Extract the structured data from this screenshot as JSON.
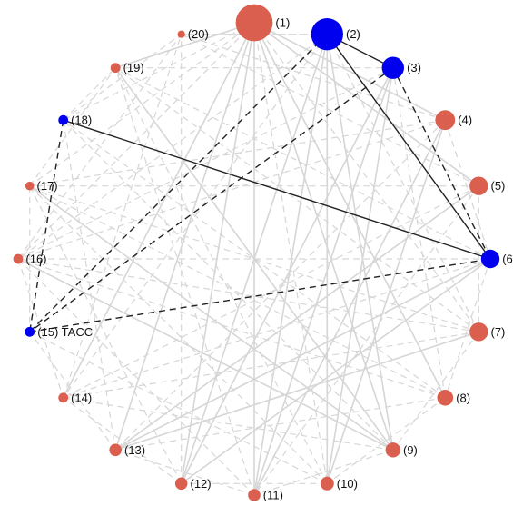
{
  "colors": {
    "default_node": "#db5f4f",
    "highlight_node": "#0000ee",
    "background_edge": "#d6d6d6",
    "highlight_edge": "#222222"
  },
  "nodes": [
    {
      "id": "1",
      "label": "(1)",
      "group": "default",
      "relative_size": 3.0
    },
    {
      "id": "2",
      "label": "(2)",
      "group": "highlight",
      "relative_size": 2.6
    },
    {
      "id": "3",
      "label": "(3)",
      "group": "highlight",
      "relative_size": 1.8
    },
    {
      "id": "4",
      "label": "(4)",
      "group": "default",
      "relative_size": 1.6
    },
    {
      "id": "5",
      "label": "(5)",
      "group": "default",
      "relative_size": 1.5
    },
    {
      "id": "6",
      "label": "(6",
      "group": "highlight",
      "relative_size": 1.5
    },
    {
      "id": "7",
      "label": "(7)",
      "group": "default",
      "relative_size": 1.5
    },
    {
      "id": "8",
      "label": "(8)",
      "group": "default",
      "relative_size": 1.3
    },
    {
      "id": "9",
      "label": "(9)",
      "group": "default",
      "relative_size": 1.2
    },
    {
      "id": "10",
      "label": "(10)",
      "group": "default",
      "relative_size": 1.1
    },
    {
      "id": "11",
      "label": "(11)",
      "group": "default",
      "relative_size": 1.0
    },
    {
      "id": "12",
      "label": "(12)",
      "group": "default",
      "relative_size": 1.0
    },
    {
      "id": "13",
      "label": "(13)",
      "group": "default",
      "relative_size": 1.0
    },
    {
      "id": "14",
      "label": "(14)",
      "group": "default",
      "relative_size": 0.8
    },
    {
      "id": "15",
      "label": "(15) TACC",
      "group": "highlight",
      "relative_size": 0.8
    },
    {
      "id": "16",
      "label": "(16)",
      "group": "default",
      "relative_size": 0.8
    },
    {
      "id": "17",
      "label": "(17)",
      "group": "default",
      "relative_size": 0.7
    },
    {
      "id": "18",
      "label": "(18)",
      "group": "highlight",
      "relative_size": 0.8
    },
    {
      "id": "19",
      "label": "(19)",
      "group": "default",
      "relative_size": 0.8
    },
    {
      "id": "20",
      "label": "(20)",
      "group": "default",
      "relative_size": 0.6
    }
  ],
  "highlight_edges": [
    {
      "from": "2",
      "to": "3",
      "style": "solid"
    },
    {
      "from": "2",
      "to": "6",
      "style": "solid"
    },
    {
      "from": "18",
      "to": "6",
      "style": "solid"
    },
    {
      "from": "3",
      "to": "6",
      "style": "dashed"
    },
    {
      "from": "2",
      "to": "15",
      "style": "dashed"
    },
    {
      "from": "3",
      "to": "15",
      "style": "dashed"
    },
    {
      "from": "18",
      "to": "15",
      "style": "dashed"
    },
    {
      "from": "15",
      "to": "6",
      "style": "dashed"
    }
  ],
  "background_edges": [
    {
      "from": "1",
      "to": "8",
      "style": "solid"
    },
    {
      "from": "1",
      "to": "9",
      "style": "solid"
    },
    {
      "from": "1",
      "to": "12",
      "style": "solid"
    },
    {
      "from": "1",
      "to": "13",
      "style": "solid"
    },
    {
      "from": "1",
      "to": "14",
      "style": "solid"
    },
    {
      "from": "1",
      "to": "11",
      "style": "solid"
    },
    {
      "from": "1",
      "to": "4",
      "style": "solid"
    },
    {
      "from": "1",
      "to": "5",
      "style": "solid"
    },
    {
      "from": "1",
      "to": "19",
      "style": "solid"
    },
    {
      "from": "2",
      "to": "10",
      "style": "solid"
    },
    {
      "from": "2",
      "to": "11",
      "style": "solid"
    },
    {
      "from": "2",
      "to": "12",
      "style": "solid"
    },
    {
      "from": "2",
      "to": "9",
      "style": "solid"
    },
    {
      "from": "3",
      "to": "11",
      "style": "solid"
    },
    {
      "from": "3",
      "to": "12",
      "style": "solid"
    },
    {
      "from": "3",
      "to": "10",
      "style": "solid"
    },
    {
      "from": "4",
      "to": "10",
      "style": "solid"
    },
    {
      "from": "4",
      "to": "11",
      "style": "solid"
    },
    {
      "from": "5",
      "to": "13",
      "style": "solid"
    },
    {
      "from": "6",
      "to": "12",
      "style": "solid"
    },
    {
      "from": "6",
      "to": "13",
      "style": "solid"
    },
    {
      "from": "7",
      "to": "13",
      "style": "solid"
    },
    {
      "from": "9",
      "to": "16",
      "style": "solid"
    },
    {
      "from": "9",
      "to": "19",
      "style": "solid"
    },
    {
      "from": "9",
      "to": "17",
      "style": "solid"
    },
    {
      "from": "1",
      "to": "17",
      "style": "dashed"
    },
    {
      "from": "1",
      "to": "18",
      "style": "dashed"
    },
    {
      "from": "1",
      "to": "16",
      "style": "dashed"
    },
    {
      "from": "1",
      "to": "7",
      "style": "dashed"
    },
    {
      "from": "1",
      "to": "10",
      "style": "dashed"
    },
    {
      "from": "2",
      "to": "20",
      "style": "dashed"
    },
    {
      "from": "2",
      "to": "16",
      "style": "dashed"
    },
    {
      "from": "2",
      "to": "14",
      "style": "dashed"
    },
    {
      "from": "2",
      "to": "7",
      "style": "dashed"
    },
    {
      "from": "3",
      "to": "16",
      "style": "dashed"
    },
    {
      "from": "3",
      "to": "19",
      "style": "dashed"
    },
    {
      "from": "3",
      "to": "8",
      "style": "dashed"
    },
    {
      "from": "4",
      "to": "16",
      "style": "dashed"
    },
    {
      "from": "4",
      "to": "17",
      "style": "dashed"
    },
    {
      "from": "4",
      "to": "20",
      "style": "dashed"
    },
    {
      "from": "4",
      "to": "13",
      "style": "dashed"
    },
    {
      "from": "5",
      "to": "17",
      "style": "dashed"
    },
    {
      "from": "5",
      "to": "20",
      "style": "dashed"
    },
    {
      "from": "5",
      "to": "14",
      "style": "dashed"
    },
    {
      "from": "5",
      "to": "11",
      "style": "dashed"
    },
    {
      "from": "6",
      "to": "16",
      "style": "dashed"
    },
    {
      "from": "6",
      "to": "14",
      "style": "dashed"
    },
    {
      "from": "6",
      "to": "19",
      "style": "dashed"
    },
    {
      "from": "7",
      "to": "17",
      "style": "dashed"
    },
    {
      "from": "7",
      "to": "14",
      "style": "dashed"
    },
    {
      "from": "7",
      "to": "16",
      "style": "dashed"
    },
    {
      "from": "7",
      "to": "19",
      "style": "dashed"
    },
    {
      "from": "8",
      "to": "17",
      "style": "dashed"
    },
    {
      "from": "8",
      "to": "13",
      "style": "dashed"
    },
    {
      "from": "8",
      "to": "16",
      "style": "dashed"
    },
    {
      "from": "8",
      "to": "18",
      "style": "dashed"
    },
    {
      "from": "9",
      "to": "14",
      "style": "dashed"
    },
    {
      "from": "9",
      "to": "18",
      "style": "dashed"
    },
    {
      "from": "10",
      "to": "17",
      "style": "dashed"
    },
    {
      "from": "10",
      "to": "19",
      "style": "dashed"
    },
    {
      "from": "10",
      "to": "15",
      "style": "dashed"
    },
    {
      "from": "11",
      "to": "16",
      "style": "dashed"
    },
    {
      "from": "11",
      "to": "19",
      "style": "dashed"
    },
    {
      "from": "12",
      "to": "17",
      "style": "dashed"
    },
    {
      "from": "12",
      "to": "20",
      "style": "dashed"
    },
    {
      "from": "13",
      "to": "18",
      "style": "dashed"
    },
    {
      "from": "14",
      "to": "20",
      "style": "dashed"
    },
    {
      "from": "16",
      "to": "20",
      "style": "dashed"
    },
    {
      "from": "17",
      "to": "19",
      "style": "dashed"
    },
    {
      "from": "18",
      "to": "19",
      "style": "dashed"
    },
    {
      "from": "13",
      "to": "15",
      "style": "dashed"
    },
    {
      "from": "12",
      "to": "14",
      "style": "dashed"
    },
    {
      "from": "11",
      "to": "13",
      "style": "dashed"
    },
    {
      "from": "10",
      "to": "12",
      "style": "dashed"
    },
    {
      "from": "9",
      "to": "11",
      "style": "dashed"
    },
    {
      "from": "8",
      "to": "10",
      "style": "dashed"
    },
    {
      "from": "7",
      "to": "9",
      "style": "dashed"
    },
    {
      "from": "6",
      "to": "8",
      "style": "dashed"
    },
    {
      "from": "5",
      "to": "7",
      "style": "dashed"
    },
    {
      "from": "4",
      "to": "6",
      "style": "dashed"
    },
    {
      "from": "19",
      "to": "1",
      "style": "dashed"
    },
    {
      "from": "20",
      "to": "2",
      "style": "dashed"
    },
    {
      "from": "17",
      "to": "15",
      "style": "dashed"
    },
    {
      "from": "16",
      "to": "14",
      "style": "dashed"
    },
    {
      "from": "18",
      "to": "20",
      "style": "dashed"
    }
  ]
}
